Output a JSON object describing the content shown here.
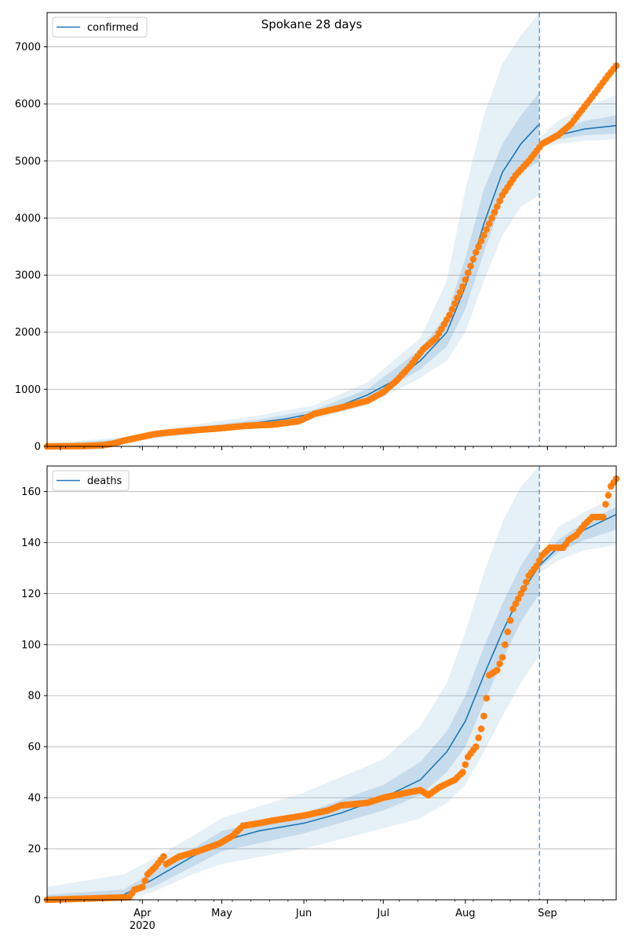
{
  "chart_data": [
    {
      "type": "line",
      "title": "Spokane 28 days",
      "legend": {
        "label": "confirmed",
        "position": "top-left"
      },
      "ylim": [
        0,
        7600
      ],
      "yticks": [
        0,
        1000,
        2000,
        3000,
        4000,
        5000,
        6000,
        7000
      ],
      "grid": "horizontal",
      "forecast_start": "2020-08-29",
      "model_line": [
        [
          "2020-02-25",
          0
        ],
        [
          "2020-03-15",
          30
        ],
        [
          "2020-03-25",
          100
        ],
        [
          "2020-04-05",
          200
        ],
        [
          "2020-04-20",
          290
        ],
        [
          "2020-05-01",
          350
        ],
        [
          "2020-05-15",
          420
        ],
        [
          "2020-05-25",
          480
        ],
        [
          "2020-06-05",
          580
        ],
        [
          "2020-06-15",
          720
        ],
        [
          "2020-06-25",
          900
        ],
        [
          "2020-07-05",
          1150
        ],
        [
          "2020-07-15",
          1500
        ],
        [
          "2020-07-25",
          2000
        ],
        [
          "2020-08-01",
          2800
        ],
        [
          "2020-08-08",
          3900
        ],
        [
          "2020-08-15",
          4800
        ],
        [
          "2020-08-22",
          5300
        ],
        [
          "2020-08-29",
          5650
        ]
      ],
      "forecast_line": [
        [
          "2020-08-29",
          5300
        ],
        [
          "2020-09-05",
          5450
        ],
        [
          "2020-09-15",
          5560
        ],
        [
          "2020-09-27",
          5620
        ]
      ],
      "band_outer": [
        [
          "2020-02-25",
          0,
          50
        ],
        [
          "2020-03-25",
          60,
          160
        ],
        [
          "2020-04-20",
          220,
          380
        ],
        [
          "2020-05-15",
          340,
          540
        ],
        [
          "2020-06-05",
          470,
          720
        ],
        [
          "2020-06-25",
          720,
          1120
        ],
        [
          "2020-07-15",
          1200,
          1900
        ],
        [
          "2020-07-25",
          1500,
          2900
        ],
        [
          "2020-08-01",
          2000,
          4500
        ],
        [
          "2020-08-08",
          2900,
          5800
        ],
        [
          "2020-08-15",
          3700,
          6700
        ],
        [
          "2020-08-22",
          4200,
          7200
        ],
        [
          "2020-08-29",
          4400,
          7600
        ]
      ],
      "band_inner": [
        [
          "2020-02-25",
          0,
          30
        ],
        [
          "2020-03-25",
          80,
          130
        ],
        [
          "2020-04-20",
          250,
          330
        ],
        [
          "2020-05-15",
          380,
          470
        ],
        [
          "2020-06-05",
          530,
          640
        ],
        [
          "2020-06-25",
          810,
          1000
        ],
        [
          "2020-07-15",
          1350,
          1700
        ],
        [
          "2020-07-25",
          1750,
          2300
        ],
        [
          "2020-08-01",
          2400,
          3300
        ],
        [
          "2020-08-08",
          3400,
          4500
        ],
        [
          "2020-08-15",
          4300,
          5300
        ],
        [
          "2020-08-22",
          4800,
          5800
        ],
        [
          "2020-08-29",
          5000,
          6200
        ]
      ],
      "forecast_band_outer": [
        [
          "2020-08-29",
          5250,
          5400
        ],
        [
          "2020-09-05",
          5300,
          5700
        ],
        [
          "2020-09-15",
          5350,
          5950
        ],
        [
          "2020-09-27",
          5380,
          6150
        ]
      ],
      "forecast_band_inner": [
        [
          "2020-08-29",
          5280,
          5330
        ],
        [
          "2020-09-05",
          5380,
          5530
        ],
        [
          "2020-09-15",
          5450,
          5700
        ],
        [
          "2020-09-27",
          5480,
          5800
        ]
      ],
      "observed": [
        [
          "2020-02-25",
          0
        ],
        [
          "2020-03-10",
          5
        ],
        [
          "2020-03-17",
          20
        ],
        [
          "2020-03-21",
          50
        ],
        [
          "2020-03-25",
          100
        ],
        [
          "2020-04-01",
          170
        ],
        [
          "2020-04-05",
          210
        ],
        [
          "2020-04-10",
          240
        ],
        [
          "2020-04-20",
          280
        ],
        [
          "2020-05-01",
          320
        ],
        [
          "2020-05-10",
          360
        ],
        [
          "2020-05-20",
          380
        ],
        [
          "2020-05-30",
          440
        ],
        [
          "2020-06-05",
          570
        ],
        [
          "2020-06-15",
          680
        ],
        [
          "2020-06-25",
          800
        ],
        [
          "2020-07-01",
          950
        ],
        [
          "2020-07-06",
          1150
        ],
        [
          "2020-07-11",
          1400
        ],
        [
          "2020-07-16",
          1700
        ],
        [
          "2020-07-21",
          1900
        ],
        [
          "2020-07-26",
          2300
        ],
        [
          "2020-07-31",
          2800
        ],
        [
          "2020-08-05",
          3400
        ],
        [
          "2020-08-10",
          3900
        ],
        [
          "2020-08-15",
          4400
        ],
        [
          "2020-08-20",
          4750
        ],
        [
          "2020-08-25",
          5000
        ],
        [
          "2020-08-30",
          5300
        ],
        [
          "2020-09-05",
          5450
        ],
        [
          "2020-09-10",
          5650
        ],
        [
          "2020-09-15",
          5950
        ],
        [
          "2020-09-20",
          6250
        ],
        [
          "2020-09-24",
          6500
        ],
        [
          "2020-09-27",
          6670
        ]
      ]
    },
    {
      "type": "line",
      "legend": {
        "label": "deaths",
        "position": "top-left"
      },
      "ylim": [
        0,
        170
      ],
      "yticks": [
        0,
        20,
        40,
        60,
        80,
        100,
        120,
        140,
        160
      ],
      "grid": "horizontal",
      "xticks": [
        {
          "date": "2020-04-01",
          "label": "Apr",
          "sublabel": "2020"
        },
        {
          "date": "2020-05-01",
          "label": "May"
        },
        {
          "date": "2020-06-01",
          "label": "Jun"
        },
        {
          "date": "2020-07-01",
          "label": "Jul"
        },
        {
          "date": "2020-08-01",
          "label": "Aug"
        },
        {
          "date": "2020-09-01",
          "label": "Sep"
        }
      ],
      "forecast_start": "2020-08-29",
      "model_line": [
        [
          "2020-02-25",
          0
        ],
        [
          "2020-03-15",
          0
        ],
        [
          "2020-03-25",
          2
        ],
        [
          "2020-04-05",
          8
        ],
        [
          "2020-04-20",
          17
        ],
        [
          "2020-05-01",
          23
        ],
        [
          "2020-05-15",
          27
        ],
        [
          "2020-06-01",
          30
        ],
        [
          "2020-06-15",
          34
        ],
        [
          "2020-07-01",
          40
        ],
        [
          "2020-07-15",
          47
        ],
        [
          "2020-07-25",
          58
        ],
        [
          "2020-08-01",
          70
        ],
        [
          "2020-08-08",
          88
        ],
        [
          "2020-08-15",
          105
        ],
        [
          "2020-08-22",
          120
        ],
        [
          "2020-08-29",
          131
        ]
      ],
      "forecast_line": [
        [
          "2020-08-29",
          131
        ],
        [
          "2020-09-05",
          138
        ],
        [
          "2020-09-15",
          145
        ],
        [
          "2020-09-27",
          151
        ]
      ],
      "band_outer": [
        [
          "2020-02-25",
          0,
          5
        ],
        [
          "2020-03-25",
          0,
          10
        ],
        [
          "2020-04-05",
          3,
          16
        ],
        [
          "2020-04-20",
          10,
          25
        ],
        [
          "2020-05-01",
          14,
          32
        ],
        [
          "2020-06-01",
          20,
          42
        ],
        [
          "2020-07-01",
          28,
          55
        ],
        [
          "2020-07-15",
          32,
          68
        ],
        [
          "2020-07-25",
          38,
          85
        ],
        [
          "2020-08-01",
          45,
          105
        ],
        [
          "2020-08-08",
          58,
          128
        ],
        [
          "2020-08-15",
          72,
          148
        ],
        [
          "2020-08-22",
          85,
          162
        ],
        [
          "2020-08-29",
          96,
          170
        ]
      ],
      "band_inner": [
        [
          "2020-02-25",
          0,
          2
        ],
        [
          "2020-03-25",
          1,
          4
        ],
        [
          "2020-04-05",
          5,
          11
        ],
        [
          "2020-04-20",
          13,
          20
        ],
        [
          "2020-05-01",
          19,
          27
        ],
        [
          "2020-06-01",
          26,
          34
        ],
        [
          "2020-07-01",
          35,
          45
        ],
        [
          "2020-07-15",
          41,
          54
        ],
        [
          "2020-07-25",
          50,
          66
        ],
        [
          "2020-08-01",
          60,
          80
        ],
        [
          "2020-08-08",
          77,
          99
        ],
        [
          "2020-08-15",
          94,
          116
        ],
        [
          "2020-08-22",
          109,
          131
        ],
        [
          "2020-08-29",
          120,
          142
        ]
      ],
      "forecast_band_outer": [
        [
          "2020-08-29",
          128,
          134
        ],
        [
          "2020-09-05",
          133,
          146
        ],
        [
          "2020-09-15",
          137,
          152
        ],
        [
          "2020-09-27",
          139,
          158
        ]
      ],
      "forecast_band_inner": [
        [
          "2020-08-29",
          130,
          132
        ],
        [
          "2020-09-05",
          136,
          141
        ],
        [
          "2020-09-15",
          141,
          148
        ],
        [
          "2020-09-27",
          145,
          154
        ]
      ],
      "observed": [
        [
          "2020-02-25",
          0
        ],
        [
          "2020-03-27",
          1
        ],
        [
          "2020-03-29",
          4
        ],
        [
          "2020-04-01",
          5
        ],
        [
          "2020-04-03",
          10
        ],
        [
          "2020-04-06",
          13
        ],
        [
          "2020-04-09",
          17
        ],
        [
          "2020-04-10",
          14
        ],
        [
          "2020-04-15",
          17
        ],
        [
          "2020-04-22",
          19
        ],
        [
          "2020-04-30",
          22
        ],
        [
          "2020-05-05",
          25
        ],
        [
          "2020-05-09",
          29
        ],
        [
          "2020-05-15",
          30
        ],
        [
          "2020-05-20",
          31
        ],
        [
          "2020-06-01",
          33
        ],
        [
          "2020-06-10",
          35
        ],
        [
          "2020-06-15",
          37
        ],
        [
          "2020-06-25",
          38
        ],
        [
          "2020-07-01",
          40
        ],
        [
          "2020-07-10",
          42
        ],
        [
          "2020-07-15",
          43
        ],
        [
          "2020-07-18",
          41
        ],
        [
          "2020-07-22",
          44
        ],
        [
          "2020-07-28",
          47
        ],
        [
          "2020-07-31",
          50
        ],
        [
          "2020-08-02",
          56
        ],
        [
          "2020-08-05",
          60
        ],
        [
          "2020-08-07",
          67
        ],
        [
          "2020-08-08",
          72
        ],
        [
          "2020-08-09",
          79
        ],
        [
          "2020-08-10",
          88
        ],
        [
          "2020-08-13",
          90
        ],
        [
          "2020-08-15",
          95
        ],
        [
          "2020-08-17",
          105
        ],
        [
          "2020-08-19",
          114
        ],
        [
          "2020-08-21",
          118
        ],
        [
          "2020-08-23",
          122
        ],
        [
          "2020-08-25",
          127
        ],
        [
          "2020-08-28",
          131
        ],
        [
          "2020-08-30",
          135
        ],
        [
          "2020-09-02",
          138
        ],
        [
          "2020-09-07",
          138
        ],
        [
          "2020-09-09",
          141
        ],
        [
          "2020-09-12",
          143
        ],
        [
          "2020-09-15",
          147
        ],
        [
          "2020-09-18",
          150
        ],
        [
          "2020-09-22",
          150
        ],
        [
          "2020-09-23",
          155
        ],
        [
          "2020-09-25",
          162
        ],
        [
          "2020-09-27",
          165
        ]
      ]
    }
  ]
}
